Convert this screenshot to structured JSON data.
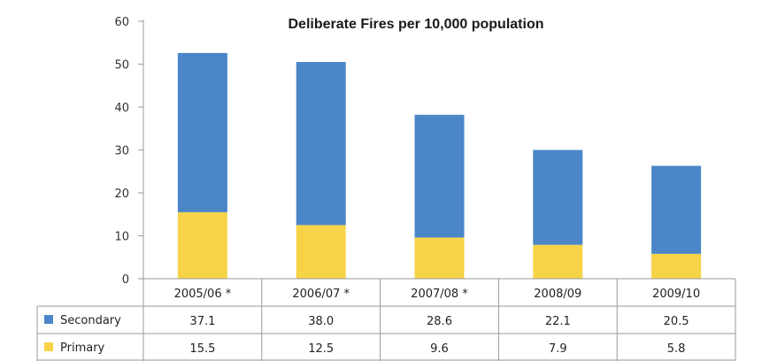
{
  "chart_data": {
    "type": "bar",
    "stacked": true,
    "title": "Deliberate Fires per 10,000 population",
    "categories": [
      "2005/06 *",
      "2006/07 *",
      "2007/08 *",
      "2008/09",
      "2009/10"
    ],
    "series": [
      {
        "name": "Secondary",
        "values": [
          37.1,
          38.0,
          28.6,
          22.1,
          20.5
        ],
        "color": "#4a86c8"
      },
      {
        "name": "Primary",
        "values": [
          15.5,
          12.5,
          9.6,
          7.9,
          5.8
        ],
        "color": "#f7d348"
      }
    ],
    "ylim": [
      0,
      60
    ],
    "yticks": [
      0,
      10,
      20,
      30,
      40,
      50,
      60
    ],
    "grid": false,
    "legend": "data-table"
  }
}
